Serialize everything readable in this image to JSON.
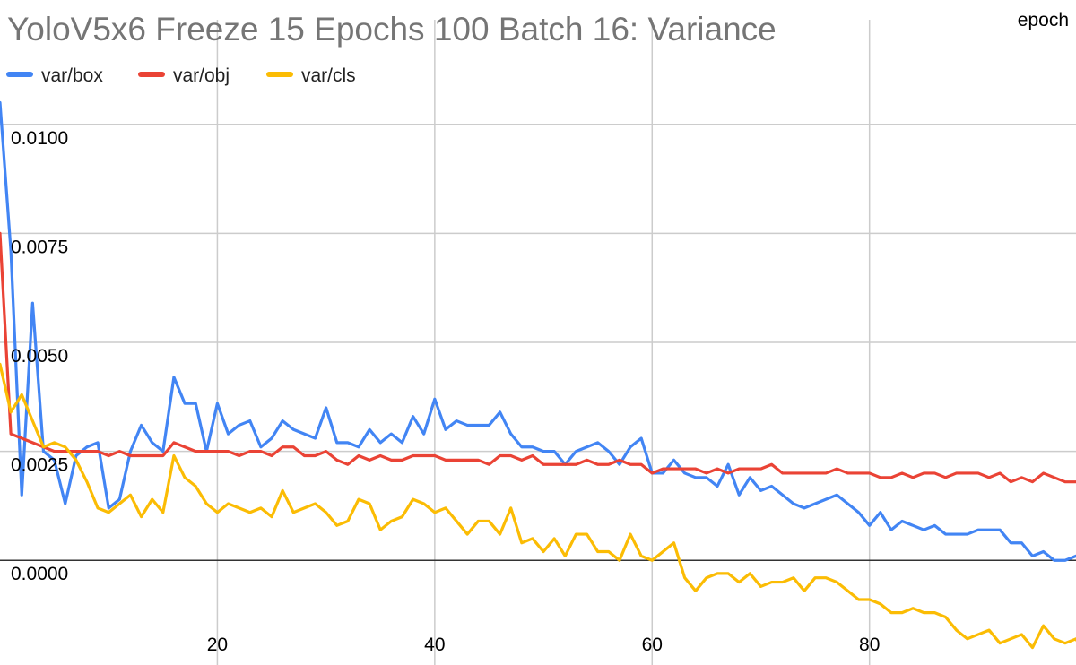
{
  "chart_data": {
    "type": "line",
    "title": "YoloV5x6 Freeze 15 Epochs 100 Batch 16: Variance",
    "xlabel": "epoch",
    "ylabel": "",
    "xlim": [
      0,
      99
    ],
    "ylim": [
      -0.0024,
      0.0124
    ],
    "grid": true,
    "legend_position": "top-left",
    "x_ticks": [
      20,
      40,
      60,
      80
    ],
    "y_ticks": [
      0,
      0.0025,
      0.005,
      0.0075,
      0.01
    ],
    "x_tick_labels": [
      "20",
      "40",
      "60",
      "80"
    ],
    "y_tick_labels": [
      "0.0000",
      "0.0025",
      "0.0050",
      "0.0075",
      "0.0100"
    ],
    "series": [
      {
        "name": "var/box",
        "color": "#4285f4",
        "values": [
          0.0105,
          0.0071,
          0.0015,
          0.0059,
          0.0025,
          0.0023,
          0.0013,
          0.0024,
          0.0026,
          0.0027,
          0.0012,
          0.0014,
          0.0025,
          0.0031,
          0.0027,
          0.0025,
          0.0042,
          0.0036,
          0.0036,
          0.0025,
          0.0036,
          0.0029,
          0.0031,
          0.0032,
          0.0026,
          0.0028,
          0.0032,
          0.003,
          0.0029,
          0.0028,
          0.0035,
          0.0027,
          0.0027,
          0.0026,
          0.003,
          0.0027,
          0.0029,
          0.0027,
          0.0033,
          0.0029,
          0.0037,
          0.003,
          0.0032,
          0.0031,
          0.0031,
          0.0031,
          0.0034,
          0.0029,
          0.0026,
          0.0026,
          0.0025,
          0.0025,
          0.0022,
          0.0025,
          0.0026,
          0.0027,
          0.0025,
          0.0022,
          0.0026,
          0.0028,
          0.002,
          0.002,
          0.0023,
          0.002,
          0.0019,
          0.0019,
          0.0017,
          0.0022,
          0.0015,
          0.0019,
          0.0016,
          0.0017,
          0.0015,
          0.0013,
          0.0012,
          0.0013,
          0.0014,
          0.0015,
          0.0013,
          0.0011,
          0.0008,
          0.0011,
          0.0007,
          0.0009,
          0.0008,
          0.0007,
          0.0008,
          0.0006,
          0.0006,
          0.0006,
          0.0007,
          0.0007,
          0.0007,
          0.0004,
          0.0004,
          0.0001,
          0.0002,
          0.0,
          0.0,
          0.0001,
          -0.0001
        ]
      },
      {
        "name": "var/obj",
        "color": "#ea4335",
        "values": [
          0.0075,
          0.0029,
          0.0028,
          0.0027,
          0.0026,
          0.0025,
          0.0025,
          0.0025,
          0.0025,
          0.0025,
          0.0024,
          0.0025,
          0.0024,
          0.0024,
          0.0024,
          0.0024,
          0.0027,
          0.0026,
          0.0025,
          0.0025,
          0.0025,
          0.0025,
          0.0024,
          0.0025,
          0.0025,
          0.0024,
          0.0026,
          0.0026,
          0.0024,
          0.0024,
          0.0025,
          0.0023,
          0.0022,
          0.0024,
          0.0023,
          0.0024,
          0.0023,
          0.0023,
          0.0024,
          0.0024,
          0.0024,
          0.0023,
          0.0023,
          0.0023,
          0.0023,
          0.0022,
          0.0024,
          0.0024,
          0.0023,
          0.0024,
          0.0022,
          0.0022,
          0.0022,
          0.0022,
          0.0023,
          0.0022,
          0.0022,
          0.0023,
          0.0022,
          0.0022,
          0.002,
          0.0021,
          0.0021,
          0.0021,
          0.0021,
          0.002,
          0.0021,
          0.002,
          0.0021,
          0.0021,
          0.0021,
          0.0022,
          0.002,
          0.002,
          0.002,
          0.002,
          0.002,
          0.0021,
          0.002,
          0.002,
          0.002,
          0.0019,
          0.0019,
          0.002,
          0.0019,
          0.002,
          0.002,
          0.0019,
          0.002,
          0.002,
          0.002,
          0.0019,
          0.002,
          0.0018,
          0.0019,
          0.0018,
          0.002,
          0.0019,
          0.0018,
          0.0018,
          0.0019,
          0.0018
        ]
      },
      {
        "name": "var/cls",
        "color": "#fbbc04",
        "values": [
          0.0045,
          0.0034,
          0.0038,
          0.0032,
          0.0026,
          0.0027,
          0.0026,
          0.0023,
          0.0018,
          0.0012,
          0.0011,
          0.0013,
          0.0015,
          0.001,
          0.0014,
          0.0011,
          0.0024,
          0.0019,
          0.0017,
          0.0013,
          0.0011,
          0.0013,
          0.0012,
          0.0011,
          0.0012,
          0.001,
          0.0016,
          0.0011,
          0.0012,
          0.0013,
          0.0011,
          0.0008,
          0.0009,
          0.0014,
          0.0013,
          0.0007,
          0.0009,
          0.001,
          0.0014,
          0.0013,
          0.0011,
          0.0012,
          0.0009,
          0.0006,
          0.0009,
          0.0009,
          0.0006,
          0.0012,
          0.0004,
          0.0005,
          0.0002,
          0.0005,
          0.0001,
          0.0006,
          0.0006,
          0.0002,
          0.0002,
          0.0,
          0.0006,
          0.0001,
          0.0,
          0.0002,
          0.0004,
          -0.0004,
          -0.0007,
          -0.0004,
          -0.0003,
          -0.0003,
          -0.0005,
          -0.0003,
          -0.0006,
          -0.0005,
          -0.0005,
          -0.0004,
          -0.0007,
          -0.0004,
          -0.0004,
          -0.0005,
          -0.0007,
          -0.0009,
          -0.0009,
          -0.001,
          -0.0012,
          -0.0012,
          -0.0011,
          -0.0012,
          -0.0012,
          -0.0013,
          -0.0016,
          -0.0018,
          -0.0017,
          -0.0016,
          -0.0019,
          -0.0018,
          -0.0017,
          -0.002,
          -0.0015,
          -0.0018,
          -0.0019,
          -0.0018,
          -0.0023,
          -0.0023,
          -0.0021
        ]
      }
    ]
  }
}
